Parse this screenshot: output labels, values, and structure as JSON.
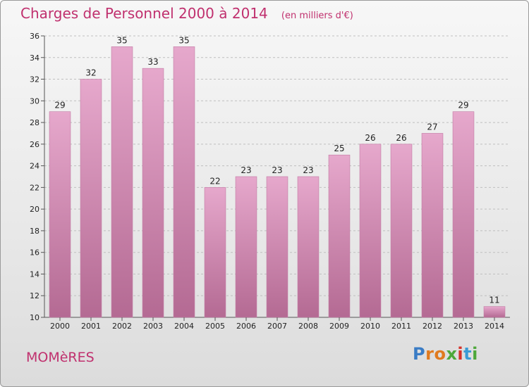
{
  "chart_data": {
    "type": "bar",
    "title": "Charges de Personnel 2000 à 2014",
    "subtitle": "(en milliers d'€)",
    "categories": [
      "2000",
      "2001",
      "2002",
      "2003",
      "2004",
      "2005",
      "2006",
      "2007",
      "2008",
      "2009",
      "2010",
      "2011",
      "2012",
      "2013",
      "2014"
    ],
    "values": [
      29,
      32,
      35,
      33,
      35,
      22,
      23,
      23,
      23,
      25,
      26,
      26,
      27,
      29,
      11
    ],
    "ylim": [
      10,
      36
    ],
    "yticks": [
      10,
      12,
      14,
      16,
      18,
      20,
      22,
      24,
      26,
      28,
      30,
      32,
      34,
      36
    ],
    "grid": true,
    "bar_color": "#d68bb6"
  },
  "commune": "MOMèRES",
  "brand": {
    "letters": [
      "P",
      "r",
      "o",
      "x",
      "i",
      "t",
      "i"
    ],
    "colors": [
      "#3a7cc5",
      "#e07a1e",
      "#e07a1e",
      "#4da83a",
      "#d6312a",
      "#3a9bd5",
      "#4da83a"
    ]
  },
  "colors": {
    "title": "#c0306e",
    "grid": "#bfbfbf",
    "axis": "#555555"
  }
}
